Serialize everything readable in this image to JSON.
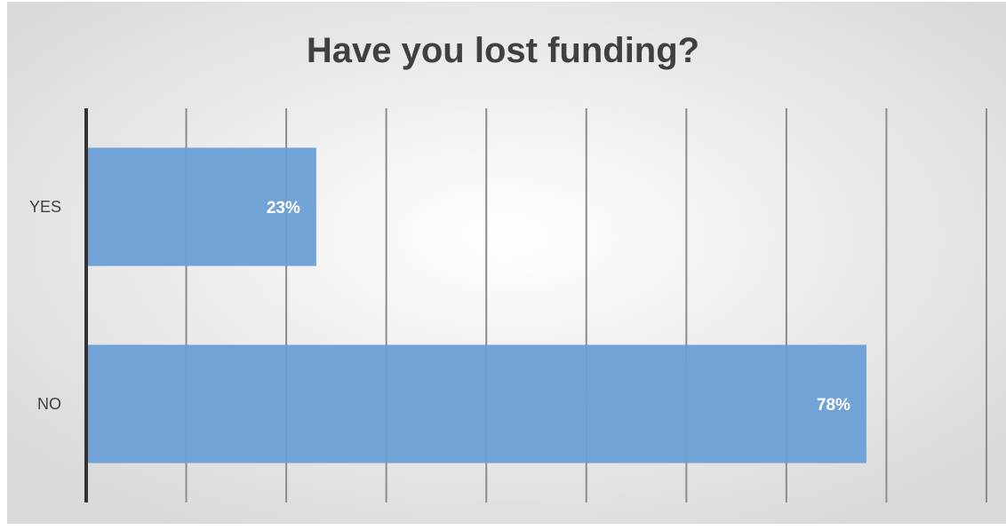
{
  "chart_data": {
    "type": "bar",
    "orientation": "horizontal",
    "title": "Have you lost funding?",
    "categories": [
      "YES",
      "NO"
    ],
    "values": [
      23,
      78
    ],
    "value_labels": [
      "23%",
      "78%"
    ],
    "xlim": [
      0,
      90
    ],
    "grid": true,
    "legend": "none",
    "bar_color": "#6a9fd5",
    "axis_color": "#333333"
  }
}
